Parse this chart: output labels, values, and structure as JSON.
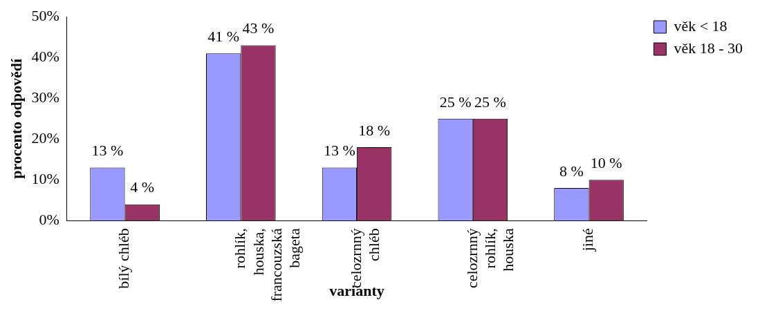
{
  "chart_data": {
    "type": "bar",
    "xlabel": "varianty",
    "ylabel": "procento odpovědí",
    "categories": [
      "bílý chléb",
      "rohlík, houska, francouzská bageta",
      "celozrnný chléb",
      "celozrnný rohlík, houska",
      "jiné"
    ],
    "series": [
      {
        "name": "věk < 18",
        "color": "#9999ff",
        "values": [
          13,
          41,
          13,
          25,
          8
        ],
        "value_labels": [
          "13 %",
          "41 %",
          "13 %",
          "25 %",
          "8 %"
        ]
      },
      {
        "name": "věk 18 - 30",
        "color": "#993366",
        "values": [
          4,
          43,
          18,
          25,
          10
        ],
        "value_labels": [
          "4 %",
          "43 %",
          "18 %",
          "25 %",
          "10 %"
        ]
      }
    ],
    "ylim": [
      0,
      50
    ],
    "yticks": [
      {
        "value": 0,
        "label": "0%"
      },
      {
        "value": 10,
        "label": "10%"
      },
      {
        "value": 20,
        "label": "20%"
      },
      {
        "value": 30,
        "label": "30%"
      },
      {
        "value": 40,
        "label": "40%"
      },
      {
        "value": 50,
        "label": "50%"
      }
    ],
    "grid": false,
    "legend": "top right"
  }
}
